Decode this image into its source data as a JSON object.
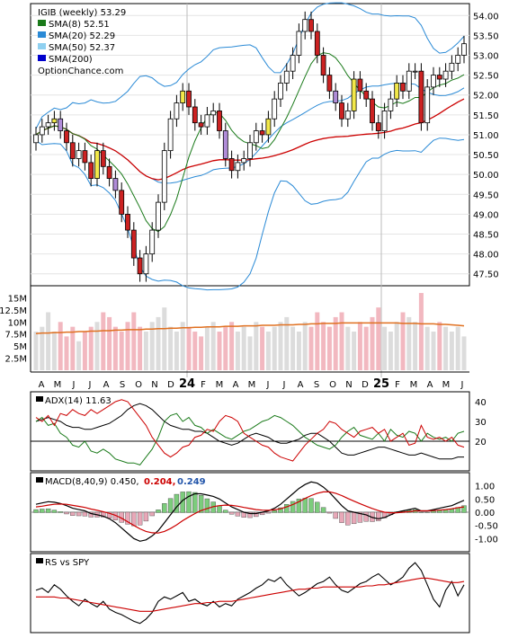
{
  "chart_data": [
    {
      "type": "candlestick",
      "panel": "price",
      "title": "IGIB (weekly) 53.29",
      "watermark": "OptionChance.com",
      "legend": [
        {
          "name": "SMA(8) 52.51",
          "color": "#1a7a1a"
        },
        {
          "name": "SMA(20) 52.29",
          "color": "#2a8ad6"
        },
        {
          "name": "SMA(50) 52.37",
          "color": "#8fd0f0"
        },
        {
          "name": "SMA(200)",
          "color": "#0000cc"
        }
      ],
      "legend_placement": "top-left",
      "y_ticks": [
        "54.00",
        "53.50",
        "53.00",
        "52.50",
        "52.00",
        "51.50",
        "51.00",
        "50.50",
        "50.00",
        "49.50",
        "49.00",
        "48.50",
        "48.00",
        "47.50"
      ],
      "ylim": [
        47.2,
        54.3
      ],
      "x_labels": [
        "A",
        "M",
        "J",
        "J",
        "A",
        "S",
        "O",
        "N",
        "D",
        "24",
        "F",
        "M",
        "A",
        "M",
        "J",
        "J",
        "A",
        "S",
        "O",
        "N",
        "D",
        "25",
        "F",
        "M",
        "A",
        "M",
        "J"
      ],
      "close": [
        51.0,
        51.2,
        51.3,
        51.4,
        51.1,
        50.8,
        50.4,
        50.6,
        50.3,
        49.9,
        50.6,
        50.2,
        49.9,
        49.6,
        49.0,
        48.6,
        47.9,
        47.5,
        48.0,
        48.6,
        49.3,
        50.6,
        51.4,
        51.8,
        52.1,
        51.7,
        51.3,
        51.2,
        51.5,
        51.6,
        51.1,
        50.4,
        50.1,
        50.3,
        50.4,
        50.8,
        51.1,
        51.0,
        51.4,
        51.9,
        52.3,
        52.6,
        53.0,
        53.6,
        53.9,
        53.6,
        53.0,
        52.5,
        52.1,
        51.8,
        51.4,
        51.6,
        52.4,
        52.1,
        51.9,
        51.3,
        51.1,
        51.6,
        51.9,
        52.3,
        52.1,
        52.6,
        52.6,
        51.3,
        52.2,
        52.5,
        52.4,
        52.6,
        52.8,
        53.0,
        53.29
      ],
      "volume_ylim": [
        0,
        17.5
      ],
      "volume_ticks": [
        "15M",
        "12.5M",
        "10M",
        "7.5M",
        "5M",
        "2.5M"
      ],
      "volume": [
        8,
        9,
        12,
        8,
        10,
        7,
        9,
        6,
        8,
        9,
        10,
        12,
        11,
        9,
        8,
        10,
        12,
        9,
        8,
        10,
        11,
        13,
        9,
        8,
        10,
        9,
        8,
        7,
        9,
        10,
        8,
        9,
        10,
        8,
        9,
        7,
        10,
        9,
        8,
        9,
        10,
        11,
        9,
        8,
        10,
        9,
        12,
        10,
        9,
        11,
        12,
        9,
        8,
        10,
        9,
        11,
        13,
        9,
        8,
        10,
        12,
        11,
        10,
        16,
        9,
        8,
        10,
        9,
        8,
        9,
        7
      ],
      "volume_avg": [
        7.6,
        7.7,
        7.7,
        7.8,
        7.8,
        7.9,
        7.9,
        8.0,
        8.0,
        8.1,
        8.1,
        8.2,
        8.2,
        8.3,
        8.3,
        8.4,
        8.4,
        8.4,
        8.5,
        8.5,
        8.6,
        8.6,
        8.7,
        8.7,
        8.8,
        8.8,
        8.9,
        8.9,
        9.0,
        9.0,
        9.0,
        9.1,
        9.1,
        9.1,
        9.2,
        9.2,
        9.2,
        9.3,
        9.3,
        9.3,
        9.4,
        9.4,
        9.4,
        9.5,
        9.5,
        9.6,
        9.6,
        9.7,
        9.7,
        9.7,
        9.8,
        9.8,
        9.8,
        9.8,
        9.8,
        9.8,
        9.8,
        9.8,
        9.8,
        9.8,
        9.7,
        9.7,
        9.7,
        9.6,
        9.6,
        9.6,
        9.5,
        9.5,
        9.4,
        9.3,
        9.2
      ]
    },
    {
      "type": "line",
      "panel": "adx",
      "title": "ADX(14) 11.63",
      "y_ticks": [
        "40",
        "30",
        "20"
      ],
      "ylim": [
        5,
        45
      ],
      "series": [
        {
          "name": "ADX",
          "color": "#000000",
          "values": [
            30,
            31,
            32,
            31,
            30,
            28,
            27,
            27,
            26,
            26,
            27,
            28,
            29,
            31,
            33,
            36,
            38,
            39,
            38,
            36,
            33,
            30,
            28,
            27,
            26,
            26,
            25,
            25,
            24,
            22,
            20,
            19,
            18,
            19,
            21,
            23,
            24,
            23,
            22,
            20,
            19,
            19,
            20,
            21,
            23,
            24,
            24,
            22,
            20,
            17,
            14,
            13,
            13,
            14,
            15,
            16,
            17,
            17,
            16,
            15,
            14,
            13,
            13,
            14,
            13,
            12,
            11,
            11,
            11,
            12,
            12
          ]
        },
        {
          "name": "+DI",
          "color": "#1a7a1a",
          "values": [
            30,
            32,
            28,
            29,
            24,
            22,
            18,
            17,
            20,
            15,
            14,
            16,
            14,
            11,
            10,
            9,
            9,
            8,
            12,
            16,
            22,
            30,
            33,
            34,
            30,
            32,
            28,
            27,
            24,
            26,
            24,
            22,
            21,
            23,
            25,
            26,
            28,
            30,
            31,
            33,
            32,
            30,
            28,
            25,
            22,
            20,
            18,
            17,
            16,
            18,
            22,
            25,
            27,
            23,
            22,
            21,
            24,
            20,
            26,
            23,
            22,
            25,
            24,
            20,
            24,
            22,
            21,
            22,
            20,
            24,
            25
          ]
        },
        {
          "name": "-DI",
          "color": "#cc0000",
          "values": [
            32,
            30,
            33,
            28,
            34,
            33,
            36,
            34,
            33,
            36,
            34,
            36,
            38,
            40,
            41,
            40,
            36,
            32,
            28,
            22,
            18,
            14,
            12,
            14,
            17,
            18,
            22,
            23,
            26,
            25,
            30,
            33,
            32,
            30,
            24,
            22,
            20,
            18,
            17,
            14,
            12,
            11,
            10,
            14,
            18,
            21,
            24,
            26,
            30,
            29,
            26,
            24,
            22,
            25,
            26,
            27,
            24,
            26,
            20,
            22,
            24,
            18,
            19,
            28,
            22,
            21,
            22,
            20,
            22,
            18,
            17
          ]
        }
      ]
    },
    {
      "type": "line",
      "panel": "macd",
      "title": "MACD(8,40,9) 0.450,",
      "title_values": [
        "0.204,",
        "0.249"
      ],
      "y_ticks": [
        "1.00",
        "0.50",
        "0.00",
        "-0.50",
        "-1.00"
      ],
      "ylim": [
        -1.5,
        1.5
      ],
      "series": [
        {
          "name": "MACD",
          "color": "#000000",
          "values": [
            0.3,
            0.35,
            0.4,
            0.38,
            0.33,
            0.25,
            0.15,
            0.1,
            0.05,
            -0.05,
            -0.1,
            -0.15,
            -0.25,
            -0.4,
            -0.6,
            -0.8,
            -1.0,
            -1.1,
            -1.05,
            -0.9,
            -0.7,
            -0.4,
            -0.1,
            0.2,
            0.45,
            0.6,
            0.7,
            0.7,
            0.65,
            0.6,
            0.5,
            0.35,
            0.2,
            0.1,
            0.0,
            -0.05,
            -0.05,
            0.0,
            0.05,
            0.15,
            0.3,
            0.5,
            0.7,
            0.9,
            1.05,
            1.15,
            1.1,
            0.95,
            0.75,
            0.5,
            0.25,
            0.05,
            0.0,
            -0.05,
            -0.1,
            -0.2,
            -0.25,
            -0.2,
            -0.1,
            0.0,
            0.05,
            0.1,
            0.15,
            0.05,
            0.05,
            0.1,
            0.15,
            0.2,
            0.25,
            0.35,
            0.45
          ]
        },
        {
          "name": "Signal",
          "color": "#cc0000",
          "values": [
            0.2,
            0.23,
            0.27,
            0.3,
            0.31,
            0.3,
            0.26,
            0.22,
            0.18,
            0.12,
            0.07,
            0.02,
            -0.04,
            -0.12,
            -0.23,
            -0.36,
            -0.5,
            -0.63,
            -0.73,
            -0.78,
            -0.79,
            -0.73,
            -0.62,
            -0.48,
            -0.32,
            -0.18,
            -0.05,
            0.06,
            0.14,
            0.21,
            0.25,
            0.27,
            0.26,
            0.23,
            0.18,
            0.14,
            0.1,
            0.08,
            0.07,
            0.09,
            0.13,
            0.2,
            0.29,
            0.4,
            0.52,
            0.63,
            0.72,
            0.77,
            0.77,
            0.72,
            0.63,
            0.52,
            0.42,
            0.32,
            0.23,
            0.14,
            0.06,
            0.0,
            -0.02,
            -0.02,
            0.0,
            0.02,
            0.05,
            0.05,
            0.05,
            0.06,
            0.08,
            0.1,
            0.13,
            0.17,
            0.2
          ]
        }
      ]
    },
    {
      "type": "line",
      "panel": "rs",
      "title": "RS vs SPY",
      "series": [
        {
          "name": "RS",
          "color": "#000000",
          "values": [
            50,
            52,
            48,
            55,
            51,
            45,
            40,
            36,
            42,
            38,
            35,
            40,
            33,
            30,
            28,
            25,
            22,
            20,
            24,
            30,
            40,
            44,
            42,
            45,
            48,
            40,
            42,
            38,
            36,
            40,
            35,
            38,
            36,
            42,
            45,
            48,
            52,
            55,
            60,
            58,
            62,
            55,
            50,
            45,
            48,
            52,
            56,
            58,
            62,
            55,
            50,
            48,
            52,
            56,
            58,
            62,
            65,
            60,
            55,
            58,
            62,
            70,
            75,
            68,
            55,
            42,
            35,
            50,
            58,
            45,
            55
          ]
        },
        {
          "name": "RS SMA",
          "color": "#cc0000",
          "values": [
            44,
            44,
            44,
            44,
            43,
            43,
            42,
            41,
            40,
            39,
            38,
            37,
            36,
            35,
            34,
            33,
            32,
            31,
            31,
            31,
            32,
            33,
            34,
            35,
            36,
            37,
            38,
            38,
            39,
            39,
            40,
            40,
            40,
            41,
            42,
            43,
            44,
            45,
            46,
            47,
            48,
            49,
            50,
            51,
            51,
            52,
            52,
            53,
            53,
            53,
            53,
            53,
            53,
            53,
            54,
            54,
            55,
            55,
            56,
            57,
            58,
            59,
            60,
            61,
            61,
            60,
            59,
            58,
            57,
            57,
            58
          ]
        }
      ]
    }
  ]
}
